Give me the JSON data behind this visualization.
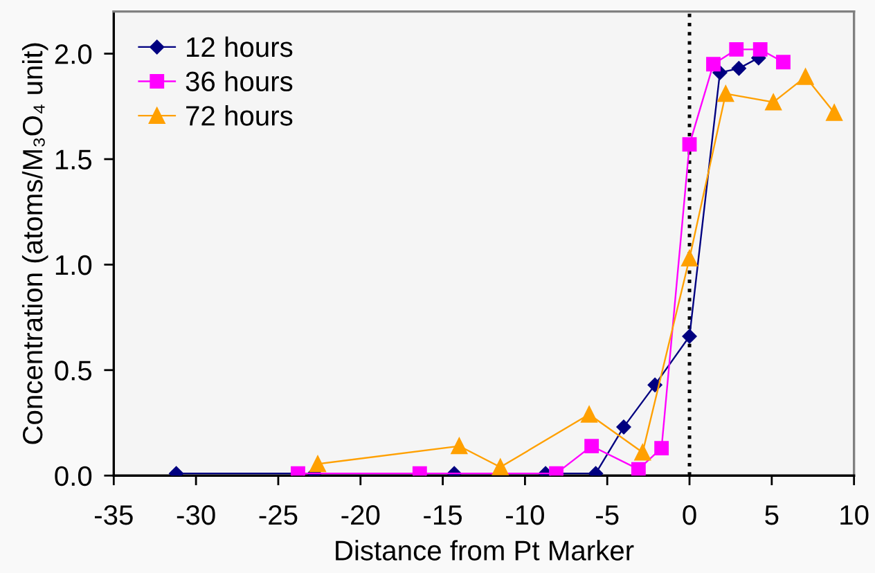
{
  "chart_data": {
    "type": "line",
    "xlabel": "Distance from Pt Marker",
    "ylabel": "Concentration (atoms/M₃O₄ unit)",
    "series": [
      {
        "name": "12 hours",
        "color": "#000080",
        "marker": "diamond",
        "x": [
          -31.2,
          -22.8,
          -14.3,
          -8.75,
          -5.7,
          -4.0,
          -2.1,
          0,
          1.85,
          3.0,
          4.2
        ],
        "values": [
          0.01,
          0.01,
          0.01,
          0.01,
          0.01,
          0.23,
          0.43,
          0.66,
          1.91,
          1.93,
          1.98
        ]
      },
      {
        "name": "36 hours",
        "color": "#ff00ff",
        "marker": "square",
        "x": [
          -23.8,
          -16.4,
          -8.1,
          -5.95,
          -3.1,
          -1.7,
          0,
          1.45,
          2.85,
          4.3,
          5.7
        ],
        "values": [
          0.01,
          0.01,
          0.01,
          0.14,
          0.03,
          0.13,
          1.57,
          1.95,
          2.02,
          2.02,
          1.96
        ]
      },
      {
        "name": "72 hours",
        "color": "#ffa000",
        "marker": "triangle",
        "x": [
          -22.6,
          -14.0,
          -11.5,
          -6.1,
          -2.85,
          0,
          2.2,
          5.1,
          7.05,
          8.8
        ],
        "values": [
          0.055,
          0.14,
          0.04,
          0.29,
          0.11,
          1.03,
          1.81,
          1.77,
          1.89,
          1.72
        ]
      }
    ],
    "xlim": [
      -35,
      10
    ],
    "xticks": [
      -35,
      -30,
      -25,
      -20,
      -15,
      -10,
      -5,
      0,
      5,
      10
    ],
    "ylim": [
      0,
      2.2
    ],
    "yticks": [
      {
        "value": 0,
        "label": "0.0"
      },
      {
        "value": 0.5,
        "label": "0.5"
      },
      {
        "value": 1.0,
        "label": "1.0"
      },
      {
        "value": 1.5,
        "label": "1.5"
      },
      {
        "value": 2.0,
        "label": "2.0"
      }
    ],
    "ref_lines": [
      {
        "axis": "x",
        "value": 0,
        "color": "#000000",
        "line_style": "dotted"
      }
    ],
    "grid": false,
    "legend": "top left",
    "line_style": "solid"
  }
}
